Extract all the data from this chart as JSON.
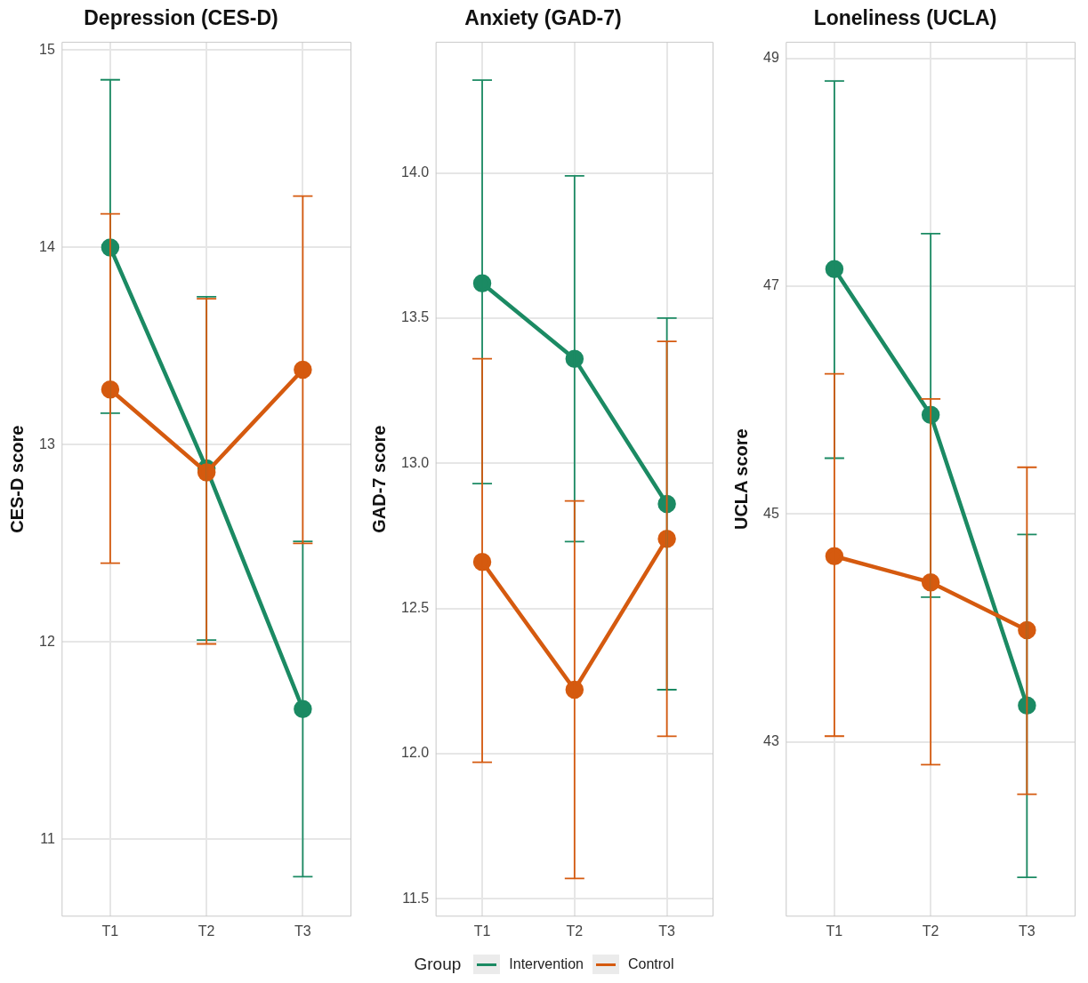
{
  "chart_data": [
    {
      "type": "line",
      "title": "Depression (CES-D)",
      "ylabel": "CES-D score",
      "categories": [
        "T1",
        "T2",
        "T3"
      ],
      "ylim": [
        10.61,
        15.04
      ],
      "yticks": [
        11,
        12,
        13,
        14,
        15
      ],
      "grid": true,
      "marker": "circle",
      "line_style": "solid",
      "legend": "bottom",
      "legend_title": "Group",
      "series": [
        {
          "name": "Intervention",
          "color": "#1b8a63",
          "values": [
            14.0,
            12.88,
            11.66
          ],
          "errors": [
            [
              13.16,
              14.85
            ],
            [
              12.01,
              13.75
            ],
            [
              10.81,
              12.51
            ]
          ]
        },
        {
          "name": "Control",
          "color": "#d55a0f",
          "values": [
            13.28,
            12.86,
            13.38
          ],
          "errors": [
            [
              12.4,
              14.17
            ],
            [
              11.99,
              13.74
            ],
            [
              12.5,
              14.26
            ]
          ]
        }
      ]
    },
    {
      "type": "line",
      "title": "Anxiety (GAD-7)",
      "ylabel": "GAD-7 score",
      "categories": [
        "T1",
        "T2",
        "T3"
      ],
      "ylim": [
        11.44,
        14.45
      ],
      "yticks": [
        {
          "value": 11.5,
          "label": "11.5"
        },
        {
          "value": 12,
          "label": "12.0"
        },
        {
          "value": 12.5,
          "label": "12.5"
        },
        {
          "value": 13,
          "label": "13.0"
        },
        {
          "value": 13.5,
          "label": "13.5"
        },
        {
          "value": 14,
          "label": "14.0"
        }
      ],
      "grid": true,
      "marker": "circle",
      "line_style": "solid",
      "series": [
        {
          "name": "Intervention",
          "color": "#1b8a63",
          "values": [
            13.62,
            13.36,
            12.86
          ],
          "errors": [
            [
              12.93,
              14.32
            ],
            [
              12.73,
              13.99
            ],
            [
              12.22,
              13.5
            ]
          ]
        },
        {
          "name": "Control",
          "color": "#d55a0f",
          "values": [
            12.66,
            12.22,
            12.74
          ],
          "errors": [
            [
              11.97,
              13.36
            ],
            [
              11.57,
              12.87
            ],
            [
              12.06,
              13.42
            ]
          ]
        }
      ]
    },
    {
      "type": "line",
      "title": "Loneliness (UCLA)",
      "ylabel": "UCLA score",
      "categories": [
        "T1",
        "T2",
        "T3"
      ],
      "ylim": [
        41.47,
        49.14
      ],
      "yticks": [
        43,
        45,
        47,
        49
      ],
      "grid": true,
      "marker": "circle",
      "line_style": "solid",
      "series": [
        {
          "name": "Intervention",
          "color": "#1b8a63",
          "values": [
            47.15,
            45.87,
            43.32
          ],
          "errors": [
            [
              45.49,
              48.8
            ],
            [
              44.27,
              47.46
            ],
            [
              41.81,
              44.82
            ]
          ]
        },
        {
          "name": "Control",
          "color": "#d55a0f",
          "values": [
            44.63,
            44.4,
            43.98
          ],
          "errors": [
            [
              43.05,
              46.23
            ],
            [
              42.8,
              46.01
            ],
            [
              42.54,
              45.41
            ]
          ]
        }
      ]
    }
  ]
}
